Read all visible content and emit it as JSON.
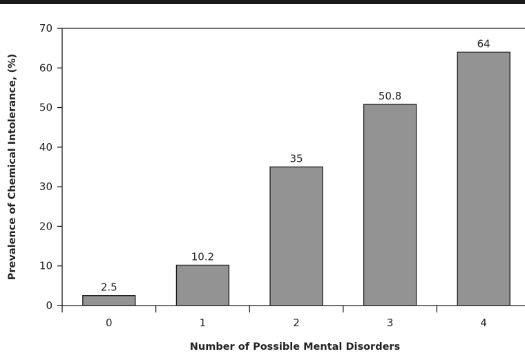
{
  "chart_data": {
    "type": "bar",
    "categories": [
      "0",
      "1",
      "2",
      "3",
      "4"
    ],
    "values": [
      2.5,
      10.2,
      35,
      50.8,
      64
    ],
    "data_labels": [
      "2.5",
      "10.2",
      "35",
      "50.8",
      "64"
    ],
    "title": "",
    "xlabel": "Number of Possible Mental Disorders",
    "ylabel": "Prevalence of Chemical Intolerance, (%)",
    "ylim": [
      0,
      70
    ],
    "yticks": [
      "0",
      "10",
      "20",
      "30",
      "40",
      "50",
      "60",
      "70"
    ],
    "grid": false,
    "legend": "none",
    "bar_color": "#939393",
    "bar_edge_color": "#1a1a1a"
  }
}
